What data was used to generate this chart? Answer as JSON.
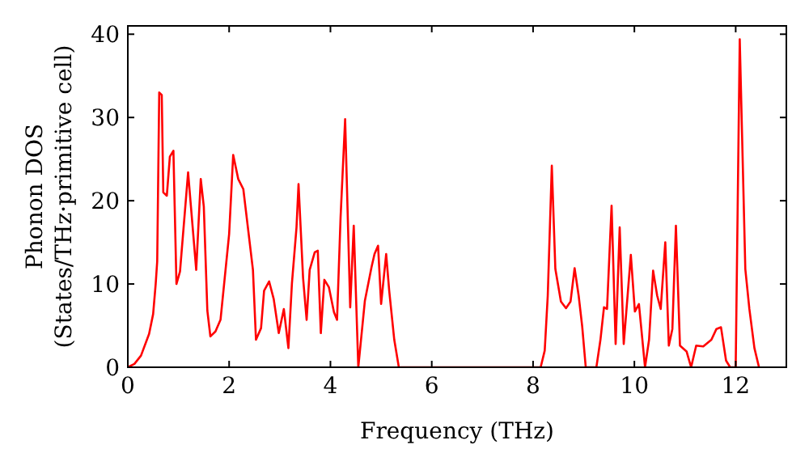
{
  "chart_data": {
    "type": "line",
    "xlabel": "Frequency (THz)",
    "ylabel": "Phonon DOS\n(States/THz·primitive cell)",
    "xlim": [
      0,
      13
    ],
    "ylim": [
      0,
      41
    ],
    "xticks": [
      0,
      2,
      4,
      6,
      8,
      10,
      12
    ],
    "yticks": [
      0,
      10,
      20,
      30,
      40
    ],
    "grid": false,
    "line_style": "solid",
    "series": [
      {
        "color": "#ff0000",
        "x": [
          0,
          0.13,
          0.26,
          0.42,
          0.5,
          0.55,
          0.58,
          0.62,
          0.67,
          0.7,
          0.77,
          0.83,
          0.9,
          0.96,
          1.03,
          1.19,
          1.35,
          1.44,
          1.5,
          1.57,
          1.63,
          1.73,
          1.83,
          2.0,
          2.08,
          2.18,
          2.28,
          2.47,
          2.53,
          2.63,
          2.69,
          2.79,
          2.88,
          2.98,
          3.08,
          3.17,
          3.24,
          3.33,
          3.37,
          3.46,
          3.53,
          3.59,
          3.69,
          3.75,
          3.81,
          3.88,
          3.97,
          4.07,
          4.13,
          4.2,
          4.29,
          4.39,
          4.46,
          4.55,
          4.68,
          4.81,
          4.87,
          4.94,
          5.0,
          5.1,
          5.16,
          5.26,
          5.35,
          8.15,
          8.23,
          8.29,
          8.37,
          8.44,
          8.55,
          8.65,
          8.74,
          8.82,
          8.9,
          8.97,
          9.04,
          9.25,
          9.33,
          9.4,
          9.46,
          9.55,
          9.63,
          9.71,
          9.79,
          9.93,
          10.01,
          10.09,
          10.21,
          10.29,
          10.37,
          10.45,
          10.52,
          10.61,
          10.68,
          10.75,
          10.82,
          10.9,
          11.03,
          11.12,
          11.22,
          11.36,
          11.52,
          11.62,
          11.71,
          11.81,
          11.89,
          12.0,
          12.08,
          12.19,
          12.27,
          12.37,
          12.46
        ],
        "values": [
          0,
          0.4,
          1.4,
          4,
          6.4,
          10,
          12.7,
          33,
          32.7,
          21,
          20.6,
          25.3,
          26,
          10,
          11.5,
          23.4,
          11.7,
          22.6,
          19.3,
          6.8,
          3.7,
          4.3,
          5.7,
          16,
          25.5,
          22.6,
          21.4,
          11.7,
          3.3,
          4.7,
          9.2,
          10.3,
          8.2,
          4.1,
          7,
          2.3,
          10.1,
          16.8,
          22,
          10.7,
          5.7,
          11.7,
          13.8,
          14,
          4.1,
          10.5,
          9.6,
          6.6,
          5.7,
          18,
          29.8,
          7.2,
          17,
          0,
          8,
          12,
          13.6,
          14.6,
          7.6,
          13.6,
          9.2,
          3.3,
          0,
          0,
          2,
          8.6,
          24.2,
          11.8,
          7.9,
          7.1,
          7.9,
          11.9,
          8.6,
          4.9,
          0,
          0,
          3.3,
          7.2,
          7,
          19.4,
          2.8,
          16.8,
          2.8,
          13.5,
          6.7,
          7.6,
          0,
          3.3,
          11.6,
          8.6,
          7,
          15,
          2.6,
          4.6,
          17,
          2.6,
          1.9,
          0,
          2.6,
          2.5,
          3.3,
          4.6,
          4.8,
          0.8,
          0,
          0,
          39.4,
          11.8,
          7,
          2.3,
          0
        ]
      }
    ]
  }
}
